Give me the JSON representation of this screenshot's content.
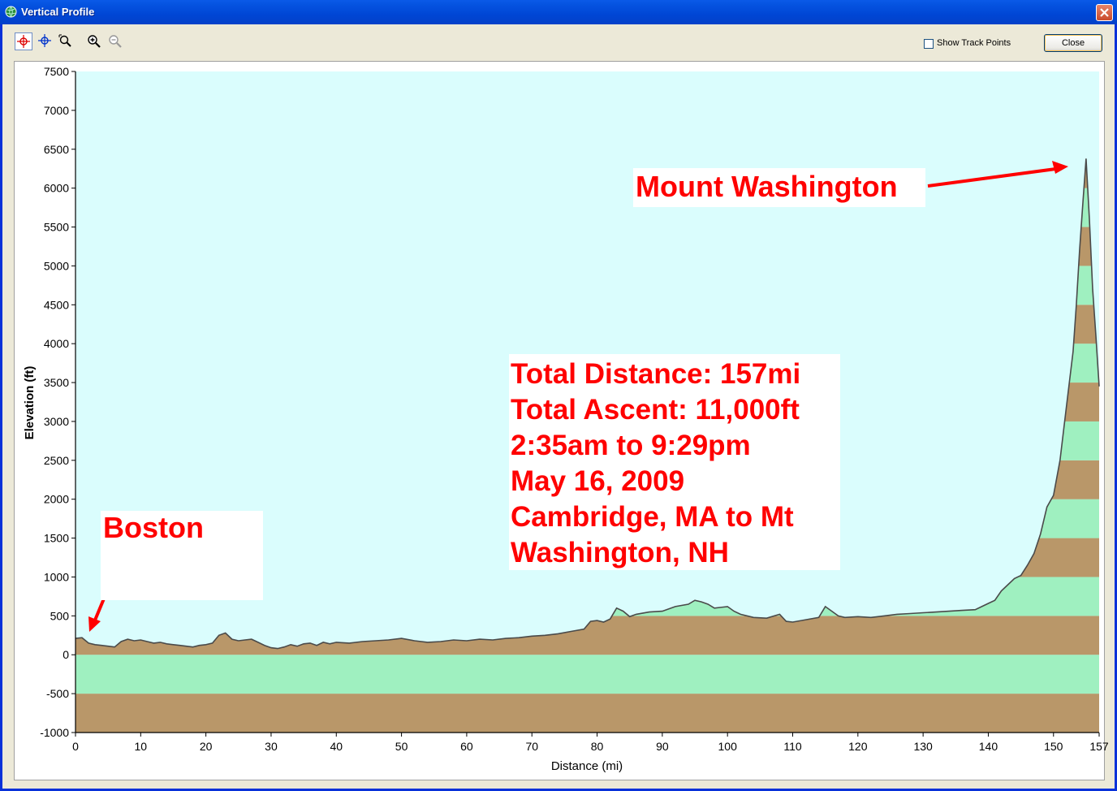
{
  "window": {
    "title": "Vertical Profile",
    "title_icon": "globe-icon"
  },
  "toolbar": {
    "tools": [
      "crosshair-select-icon",
      "crosshair-icon",
      "zoom-window-icon",
      "zoom-in-icon",
      "zoom-out-icon"
    ],
    "show_track_points_label": "Show Track Points",
    "show_track_points_checked": false,
    "close_label": "Close"
  },
  "chart_data": {
    "type": "area",
    "title": "",
    "xlabel": "Distance   (mi)",
    "ylabel": "Elevation (ft)",
    "xlim": [
      0,
      157
    ],
    "ylim": [
      -1000,
      7500
    ],
    "x_ticks": [
      "0",
      "10",
      "20",
      "30",
      "40",
      "50",
      "60",
      "70",
      "80",
      "90",
      "100",
      "110",
      "120",
      "130",
      "140",
      "150",
      "157"
    ],
    "y_ticks": [
      "7500",
      "7000",
      "6500",
      "6000",
      "5500",
      "5000",
      "4500",
      "4000",
      "3500",
      "3000",
      "2500",
      "2000",
      "1500",
      "1000",
      "500",
      "0",
      "-500",
      "-1000"
    ],
    "band_colors": [
      "#b99769",
      "#9ff0c0"
    ],
    "sky_color": "#dafdfd",
    "line_color": "#4a4a4a",
    "series": [
      {
        "x": [
          0,
          1,
          2,
          3,
          4,
          5,
          6,
          7,
          8,
          9,
          10,
          11,
          12,
          13,
          14,
          15,
          16,
          17,
          18,
          19,
          20,
          21,
          22,
          23,
          24,
          25,
          26,
          27,
          28,
          29,
          30,
          31,
          32,
          33,
          34,
          35,
          36,
          37,
          38,
          39,
          40,
          42,
          44,
          46,
          48,
          50,
          52,
          54,
          56,
          58,
          60,
          62,
          64,
          66,
          68,
          70,
          72,
          74,
          76,
          78,
          79,
          80,
          81,
          82,
          83,
          84,
          85,
          86,
          88,
          90,
          92,
          94,
          95,
          96,
          97,
          98,
          100,
          101,
          102,
          104,
          106,
          108,
          109,
          110,
          112,
          114,
          115,
          116,
          117,
          118,
          120,
          122,
          124,
          126,
          128,
          130,
          132,
          134,
          136,
          138,
          139,
          140,
          141,
          142,
          143,
          144,
          145,
          146,
          147,
          148,
          149,
          150,
          151,
          152,
          153,
          153.5,
          154,
          154.5,
          155,
          155.5,
          156,
          156.5,
          157
        ],
        "y": [
          210,
          220,
          150,
          130,
          120,
          110,
          100,
          170,
          200,
          180,
          190,
          170,
          150,
          160,
          140,
          130,
          120,
          110,
          100,
          120,
          130,
          150,
          250,
          280,
          200,
          180,
          190,
          200,
          160,
          120,
          90,
          80,
          100,
          130,
          110,
          140,
          150,
          120,
          160,
          140,
          160,
          150,
          170,
          180,
          190,
          210,
          180,
          160,
          170,
          190,
          180,
          200,
          190,
          210,
          220,
          240,
          250,
          270,
          300,
          330,
          430,
          440,
          420,
          460,
          600,
          560,
          490,
          520,
          550,
          560,
          620,
          650,
          700,
          680,
          650,
          600,
          620,
          560,
          520,
          480,
          470,
          520,
          430,
          420,
          450,
          480,
          620,
          560,
          500,
          480,
          490,
          480,
          500,
          520,
          530,
          540,
          550,
          560,
          570,
          580,
          620,
          660,
          700,
          820,
          900,
          980,
          1020,
          1150,
          1300,
          1550,
          1900,
          2050,
          2500,
          3200,
          3900,
          4500,
          5200,
          5800,
          6380,
          5600,
          4700,
          4100,
          3450
        ]
      }
    ]
  },
  "annotations": {
    "mount_washington": "Mount Washington",
    "boston": "Boston",
    "stats": [
      "Total Distance: 157mi",
      "Total Ascent: 11,000ft",
      "2:35am to 9:29pm",
      "May 16, 2009",
      "Cambridge, MA to Mt",
      "Washington, NH"
    ]
  }
}
